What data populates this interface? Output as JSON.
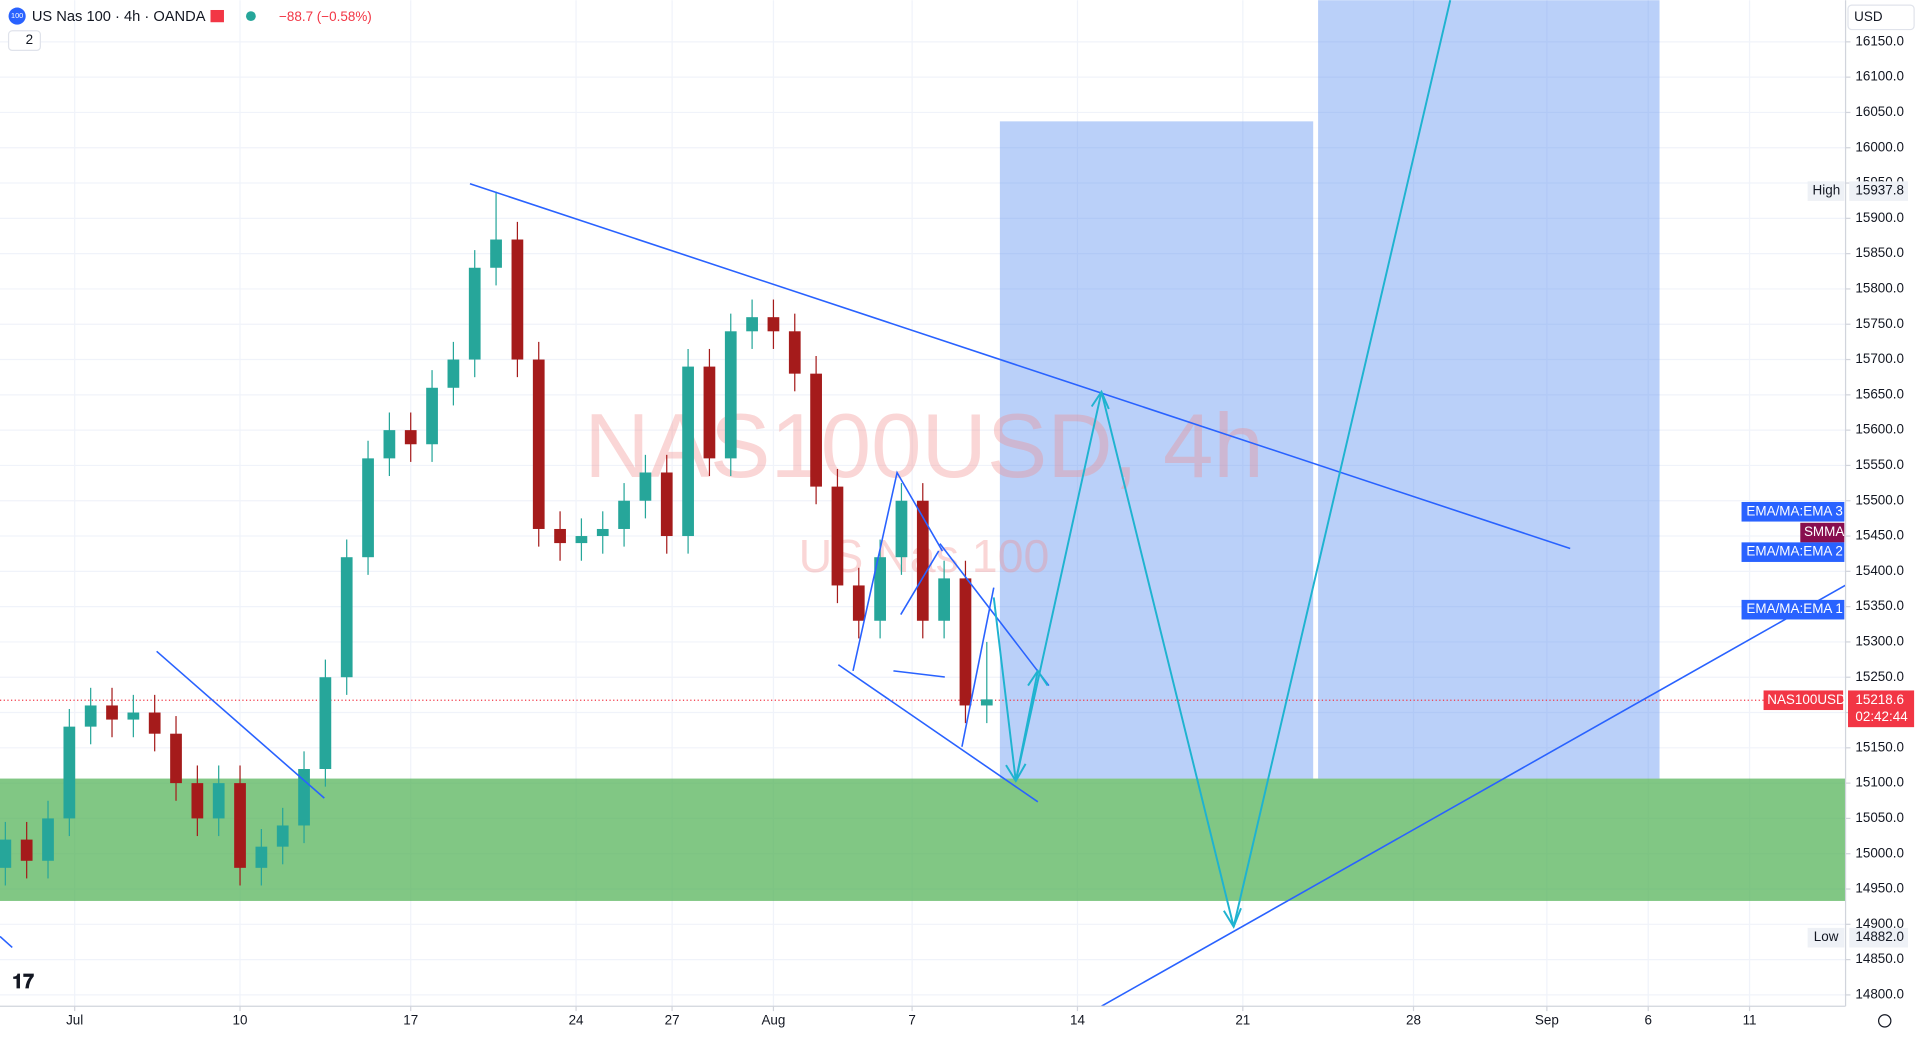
{
  "header": {
    "symbol_badge": "100",
    "title": "US Nas 100 · 4h · OANDA",
    "change": "−88.7 (−0.58%)",
    "indicator_count": "2",
    "currency": "USD"
  },
  "watermark": {
    "line1": "NAS100USD, 4h",
    "line2": "US Nas 100"
  },
  "indicator_labels": [
    "EMA/MA:EMA 3",
    "SMMA",
    "EMA/MA:EMA 2",
    "EMA/MA:EMA 1"
  ],
  "high_label": {
    "text": "High",
    "value": "15937.8"
  },
  "low_label": {
    "text": "Low",
    "value": "14882.0"
  },
  "price_label": {
    "symbol": "NAS100USD",
    "value": "15218.6",
    "countdown": "02:42:44"
  },
  "chart_data": {
    "type": "candlestick",
    "x": [
      1,
      5,
      9,
      13,
      17,
      21,
      25,
      29,
      33,
      37,
      41,
      45,
      49,
      53,
      57,
      61,
      65,
      69,
      73,
      77,
      81,
      85,
      89,
      93,
      97,
      101,
      105,
      109,
      113,
      117,
      121,
      125,
      129,
      133,
      137,
      141,
      145,
      149,
      153,
      157,
      161,
      165,
      169,
      173,
      177,
      181,
      185
    ],
    "open": [
      14980,
      15020,
      14990,
      15050,
      15180,
      15210,
      15190,
      15200,
      15170,
      15100,
      15050,
      15100,
      14980,
      15010,
      15040,
      15120,
      15250,
      15420,
      15560,
      15600,
      15580,
      15660,
      15700,
      15830,
      15870,
      15700,
      15460,
      15440,
      15450,
      15460,
      15500,
      15540,
      15450,
      15690,
      15560,
      15740,
      15760,
      15740,
      15680,
      15520,
      15380,
      15330,
      15420,
      15500,
      15330,
      15390,
      15210
    ],
    "high": [
      15045,
      15045,
      15075,
      15205,
      15235,
      15235,
      15225,
      15225,
      15195,
      15125,
      15125,
      15125,
      15035,
      15065,
      15145,
      15275,
      15445,
      15585,
      15625,
      15625,
      15685,
      15725,
      15855,
      15937.8,
      15895,
      15725,
      15485,
      15475,
      15485,
      15525,
      15565,
      15565,
      15715,
      15715,
      15765,
      15785,
      15785,
      15765,
      15705,
      15545,
      15405,
      15445,
      15525,
      15525,
      15415,
      15415,
      15300
    ],
    "low": [
      14955,
      14965,
      14965,
      15025,
      15155,
      15165,
      15165,
      15145,
      15075,
      15025,
      15025,
      14955,
      14955,
      14985,
      15015,
      15095,
      15225,
      15395,
      15535,
      15555,
      15555,
      15635,
      15675,
      15805,
      15675,
      15435,
      15415,
      15415,
      15425,
      15435,
      15475,
      15425,
      15425,
      15535,
      15535,
      15715,
      15715,
      15655,
      15495,
      15355,
      15305,
      15305,
      15395,
      15305,
      15305,
      15185,
      15185
    ],
    "close": [
      15020,
      14990,
      15050,
      15180,
      15210,
      15190,
      15200,
      15170,
      15100,
      15050,
      15100,
      14980,
      15010,
      15040,
      15120,
      15250,
      15420,
      15560,
      15600,
      15580,
      15660,
      15700,
      15830,
      15870,
      15700,
      15460,
      15440,
      15450,
      15460,
      15500,
      15540,
      15450,
      15690,
      15560,
      15740,
      15760,
      15740,
      15680,
      15520,
      15380,
      15330,
      15420,
      15500,
      15330,
      15390,
      15210,
      15218.6
    ],
    "up_color": "#26a69a",
    "down_color": "#a51b1b",
    "xlim": [
      0,
      346
    ],
    "xticks": [
      {
        "value": 14,
        "label": "Jul"
      },
      {
        "value": 45,
        "label": "10"
      },
      {
        "value": 77,
        "label": "17"
      },
      {
        "value": 108,
        "label": "24"
      },
      {
        "value": 126,
        "label": "27"
      },
      {
        "value": 145,
        "label": "Aug"
      },
      {
        "value": 171,
        "label": "7"
      },
      {
        "value": 202,
        "label": "14"
      },
      {
        "value": 233,
        "label": "21"
      },
      {
        "value": 265,
        "label": "28"
      },
      {
        "value": 290,
        "label": "Sep"
      },
      {
        "value": 309,
        "label": "6"
      },
      {
        "value": 328,
        "label": "11"
      }
    ],
    "ylim": [
      14784,
      16209
    ],
    "yticks": [
      {
        "value": 14800,
        "label": "14800.0"
      },
      {
        "value": 14850,
        "label": "14850.0"
      },
      {
        "value": 14900,
        "label": "14900.0"
      },
      {
        "value": 14950,
        "label": "14950.0"
      },
      {
        "value": 15000,
        "label": "15000.0"
      },
      {
        "value": 15050,
        "label": "15050.0"
      },
      {
        "value": 15100,
        "label": "15100.0"
      },
      {
        "value": 15150,
        "label": "15150.0"
      },
      {
        "value": 15200,
        "label": "15200.0"
      },
      {
        "value": 15250,
        "label": "15250.0"
      },
      {
        "value": 15300,
        "label": "15300.0"
      },
      {
        "value": 15350,
        "label": "15350.0"
      },
      {
        "value": 15400,
        "label": "15400.0"
      },
      {
        "value": 15450,
        "label": "15450.0"
      },
      {
        "value": 15500,
        "label": "15500.0"
      },
      {
        "value": 15550,
        "label": "15550.0"
      },
      {
        "value": 15600,
        "label": "15600.0"
      },
      {
        "value": 15650,
        "label": "15650.0"
      },
      {
        "value": 15700,
        "label": "15700.0"
      },
      {
        "value": 15750,
        "label": "15750.0"
      },
      {
        "value": 15800,
        "label": "15800.0"
      },
      {
        "value": 15850,
        "label": "15850.0"
      },
      {
        "value": 15900,
        "label": "15900.0"
      },
      {
        "value": 15950,
        "label": "15950.0"
      },
      {
        "value": 16000,
        "label": "16000.0"
      },
      {
        "value": 16050,
        "label": "16050.0"
      },
      {
        "value": 16100,
        "label": "16100.0"
      },
      {
        "value": 16150,
        "label": "16150.0"
      }
    ],
    "grid": true
  }
}
